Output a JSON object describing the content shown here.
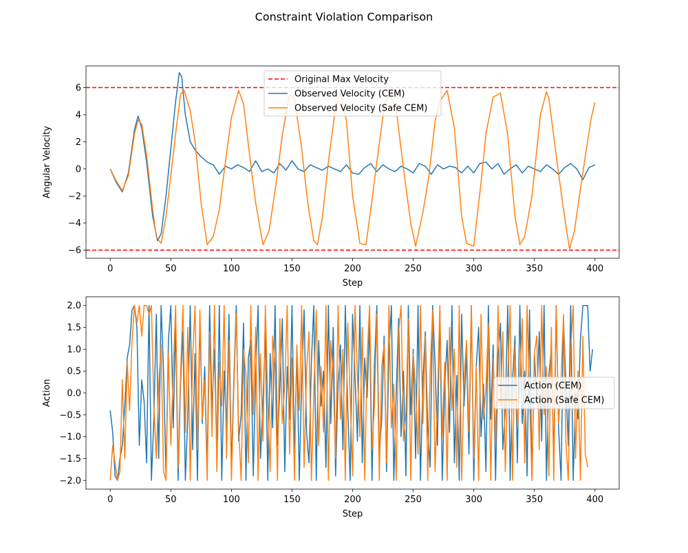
{
  "figure_title": "Constraint Violation Comparison",
  "chart_data": [
    {
      "type": "line",
      "title": "Constraint Violation Comparison",
      "xlabel": "Step",
      "ylabel": "Angular Velocity",
      "xlim": [
        -20,
        420
      ],
      "ylim": [
        -6.6,
        7.6
      ],
      "xticks": [
        0,
        50,
        100,
        150,
        200,
        250,
        300,
        350,
        400
      ],
      "xtick_labels": [
        "0",
        "50",
        "100",
        "150",
        "200",
        "250",
        "300",
        "350",
        "400"
      ],
      "yticks": [
        -6,
        -4,
        -2,
        0,
        2,
        4,
        6
      ],
      "ytick_labels": [
        "−6",
        "−4",
        "−2",
        "0",
        "2",
        "4",
        "6"
      ],
      "legend": {
        "placement": "upper-center",
        "entries": [
          {
            "label": "Original Max Velocity",
            "color": "#ff0000",
            "style": "dashed"
          },
          {
            "label": "Observed Velocity (CEM)",
            "color": "#1f77b4",
            "style": "solid"
          },
          {
            "label": "Observed Velocity (Safe CEM)",
            "color": "#ff7f0e",
            "style": "solid"
          }
        ]
      },
      "hlines": [
        {
          "name": "Original Max Velocity",
          "y": 6,
          "color": "#ff0000"
        },
        {
          "name": "Original Min Velocity",
          "y": -6,
          "color": "#ff0000"
        }
      ],
      "series": [
        {
          "name": "Observed Velocity (CEM)",
          "color": "#1f77b4",
          "x": [
            0,
            5,
            10,
            15,
            20,
            23,
            26,
            30,
            35,
            39,
            42,
            46,
            50,
            54,
            57,
            59,
            62,
            66,
            70,
            75,
            80,
            85,
            90,
            95,
            100,
            105,
            110,
            115,
            120,
            125,
            130,
            135,
            140,
            145,
            150,
            155,
            160,
            165,
            170,
            175,
            180,
            185,
            190,
            195,
            200,
            205,
            210,
            215,
            220,
            225,
            230,
            235,
            240,
            245,
            250,
            255,
            260,
            265,
            270,
            275,
            280,
            285,
            290,
            295,
            300,
            305,
            310,
            315,
            320,
            325,
            330,
            335,
            340,
            345,
            350,
            355,
            360,
            365,
            370,
            375,
            380,
            385,
            390,
            395,
            400
          ],
          "values": [
            0,
            -1.0,
            -1.7,
            -0.3,
            2.9,
            3.9,
            3.0,
            0.5,
            -3.5,
            -5.3,
            -4.8,
            -2.0,
            1.5,
            5.0,
            7.1,
            6.8,
            4.0,
            2.0,
            1.4,
            0.9,
            0.5,
            0.3,
            -0.4,
            0.2,
            0.0,
            0.3,
            0.1,
            -0.2,
            0.6,
            -0.2,
            0.0,
            -0.3,
            0.4,
            -0.1,
            0.6,
            0.0,
            -0.2,
            0.3,
            0.1,
            -0.1,
            0.2,
            0.0,
            -0.2,
            0.3,
            -0.3,
            -0.4,
            0.1,
            0.4,
            -0.2,
            0.3,
            0.0,
            -0.2,
            0.2,
            0.0,
            -0.3,
            0.4,
            0.2,
            -0.4,
            0.3,
            0.0,
            0.2,
            0.1,
            -0.3,
            0.2,
            -0.3,
            0.4,
            0.5,
            0.0,
            0.4,
            -0.4,
            0.0,
            0.3,
            -0.3,
            0.2,
            0.0,
            -0.2,
            0.3,
            0.0,
            -0.4,
            0.1,
            0.4,
            0.0,
            -0.8,
            0.1,
            0.3
          ]
        },
        {
          "name": "Observed Velocity (Safe CEM)",
          "color": "#ff7f0e",
          "x": [
            0,
            5,
            10,
            15,
            20,
            23,
            26,
            30,
            35,
            38,
            42,
            46,
            50,
            54,
            58,
            61,
            66,
            70,
            75,
            80,
            85,
            90,
            95,
            100,
            106,
            110,
            115,
            120,
            126,
            131,
            137,
            142,
            148,
            152,
            158,
            163,
            168,
            171,
            175,
            180,
            186,
            190,
            195,
            200,
            206,
            211,
            215,
            220,
            226,
            230,
            236,
            242,
            248,
            252,
            258,
            263,
            268,
            272,
            278,
            284,
            290,
            294,
            300,
            306,
            310,
            316,
            322,
            328,
            334,
            338,
            342,
            348,
            355,
            360,
            362,
            368,
            374,
            379,
            383,
            388,
            393,
            397,
            400
          ],
          "values": [
            0,
            -0.9,
            -1.6,
            -0.5,
            2.6,
            3.6,
            3.3,
            1.0,
            -3.0,
            -5.0,
            -5.5,
            -3.5,
            -0.5,
            2.6,
            5.5,
            5.8,
            4.3,
            2.0,
            -2.5,
            -5.6,
            -5.0,
            -3.0,
            0.5,
            3.8,
            5.8,
            4.8,
            1.0,
            -2.5,
            -5.6,
            -4.6,
            -1.0,
            2.5,
            5.5,
            5.2,
            1.5,
            -2.5,
            -5.3,
            -5.6,
            -3.6,
            0.5,
            4.6,
            5.7,
            3.5,
            -2.0,
            -5.5,
            -5.6,
            -3.0,
            0.5,
            4.5,
            5.7,
            4.4,
            0.0,
            -4.0,
            -5.7,
            -3.2,
            -0.5,
            3.5,
            5.0,
            5.8,
            3.0,
            -3.5,
            -5.5,
            -5.7,
            -1.0,
            2.6,
            5.3,
            5.6,
            2.5,
            -3.5,
            -5.6,
            -5.0,
            -2.0,
            4.0,
            5.7,
            5.2,
            1.0,
            -3.0,
            -5.9,
            -4.6,
            -1.5,
            1.5,
            3.8,
            4.9
          ]
        }
      ]
    },
    {
      "type": "line",
      "title": "",
      "xlabel": "Step",
      "ylabel": "Action",
      "xlim": [
        -20,
        420
      ],
      "ylim": [
        -2.2,
        2.2
      ],
      "xticks": [
        0,
        50,
        100,
        150,
        200,
        250,
        300,
        350,
        400
      ],
      "xtick_labels": [
        "0",
        "50",
        "100",
        "150",
        "200",
        "250",
        "300",
        "350",
        "400"
      ],
      "yticks": [
        -2.0,
        -1.5,
        -1.0,
        -0.5,
        0.0,
        0.5,
        1.0,
        1.5,
        2.0
      ],
      "ytick_labels": [
        "−2.0",
        "−1.5",
        "−1.0",
        "−0.5",
        "0.0",
        "0.5",
        "1.0",
        "1.5",
        "2.0"
      ],
      "legend": {
        "placement": "center-right",
        "entries": [
          {
            "label": "Action (CEM)",
            "color": "#1f77b4",
            "style": "solid"
          },
          {
            "label": "Action (Safe CEM)",
            "color": "#ff7f0e",
            "style": "solid"
          }
        ]
      },
      "series": [
        {
          "name": "Action (CEM)",
          "color": "#1f77b4",
          "x_start": 0,
          "x_step": 2,
          "values": [
            -0.4,
            -0.9,
            -1.9,
            -2.0,
            -1.5,
            -1.2,
            -0.3,
            0.8,
            1.1,
            1.9,
            2.0,
            1.5,
            -1.2,
            0.3,
            -0.2,
            -1.6,
            2.0,
            -2.0,
            -0.6,
            1.8,
            -1.5,
            2.0,
            0.5,
            -1.9,
            1.2,
            2.0,
            -0.8,
            1.6,
            -2.0,
            0.2,
            1.4,
            -2.0,
            -0.5,
            2.0,
            -1.3,
            0.9,
            -2.0,
            1.7,
            -0.7,
            0.6,
            -1.8,
            2.0,
            -0.4,
            1.0,
            -1.5,
            2.0,
            -2.0,
            0.5,
            -0.9,
            1.8,
            -1.7,
            0.3,
            2.0,
            -1.1,
            -0.5,
            1.6,
            -2.0,
            0.8,
            1.2,
            -1.9,
            0.4,
            2.0,
            -1.5,
            -0.2,
            1.4,
            -2.0,
            0.9,
            -0.8,
            2.0,
            -1.2,
            0.1,
            1.7,
            -1.8,
            0.6,
            -0.6,
            2.0,
            -1.4,
            1.0,
            -2.0,
            0.3,
            1.9,
            -0.9,
            -1.6,
            0.7,
            2.0,
            -2.0,
            1.2,
            -0.3,
            0.5,
            -1.7,
            2.0,
            -0.7,
            1.5,
            -1.9,
            0.2,
            1.1,
            -1.3,
            2.0,
            -0.4,
            -2.0,
            1.8,
            0.4,
            -1.1,
            2.0,
            -1.6,
            0.8,
            -0.1,
            1.6,
            -2.0,
            0.6,
            2.0,
            -1.4,
            -0.6,
            1.3,
            -1.8,
            0.9,
            2.0,
            -2.0,
            0.0,
            1.7,
            -1.0,
            0.5,
            -1.9,
            2.0,
            -0.5,
            1.0,
            -1.5,
            2.0,
            -2.0,
            0.3,
            1.4,
            -0.8,
            -1.7,
            2.0,
            0.7,
            -1.2,
            1.9,
            -2.0,
            0.1,
            1.2,
            -0.9,
            2.0,
            -1.6,
            0.4,
            -2.0,
            1.8,
            -0.3,
            0.9,
            -1.4,
            2.0,
            -2.0,
            0.6,
            1.5,
            -1.0,
            0.2,
            -1.8,
            2.0,
            -0.6,
            1.1,
            -2.0,
            0.8,
            1.6,
            -1.3,
            -0.4,
            2.0,
            -2.0,
            0.3,
            1.3,
            -1.6,
            2.0,
            -0.7,
            0.5,
            -1.9,
            1.9,
            -2.0,
            0.9,
            -0.2,
            1.4,
            -1.1,
            2.0,
            -2.0,
            0.4,
            1.0,
            -1.5,
            2.0,
            -0.8,
            -2.0,
            1.7,
            0.2,
            -1.2,
            2.0,
            -2.0,
            0.0,
            -0.6,
            1.2,
            2.0,
            2.0,
            2.0,
            0.5,
            1.0
          ]
        },
        {
          "name": "Action (Safe CEM)",
          "color": "#ff7f0e",
          "x_start": 0,
          "x_step": 2,
          "values": [
            -2.0,
            -1.2,
            -1.6,
            -2.0,
            -1.8,
            0.3,
            -1.5,
            0.7,
            -0.4,
            1.2,
            2.0,
            1.6,
            2.0,
            1.3,
            2.0,
            2.0,
            1.8,
            2.0,
            -0.3,
            -1.5,
            0.2,
            1.1,
            -1.8,
            -2.0,
            0.9,
            -1.2,
            0.5,
            2.0,
            -1.7,
            0.4,
            2.0,
            -0.9,
            1.5,
            -2.0,
            0.8,
            2.0,
            -1.3,
            1.9,
            -0.6,
            0.3,
            -2.0,
            1.4,
            -1.0,
            2.0,
            -1.8,
            0.7,
            -0.3,
            2.0,
            -1.5,
            1.2,
            -2.0,
            0.1,
            1.8,
            -0.8,
            -2.0,
            1.0,
            0.4,
            -1.6,
            2.0,
            -0.5,
            1.5,
            -2.0,
            0.9,
            -1.1,
            2.0,
            -0.2,
            -1.8,
            1.3,
            0.6,
            -2.0,
            1.7,
            -0.7,
            0.2,
            2.0,
            -1.4,
            0.8,
            -2.0,
            1.1,
            -0.4,
            2.0,
            -1.7,
            0.5,
            1.4,
            -2.0,
            0.0,
            1.9,
            -1.2,
            0.6,
            -0.9,
            2.0,
            -2.0,
            1.2,
            0.3,
            -1.5,
            2.0,
            -0.6,
            1.0,
            -2.0,
            1.6,
            -0.1,
            -1.9,
            2.0,
            0.4,
            -1.0,
            1.5,
            -2.0,
            0.8,
            2.0,
            -1.3,
            -0.3,
            1.8,
            -2.0,
            0.6,
            1.1,
            -1.6,
            2.0,
            -0.8,
            0.2,
            -2.0,
            1.4,
            2.0,
            -1.1,
            -0.5,
            1.7,
            -2.0,
            0.9,
            0.1,
            -1.4,
            2.0,
            -0.7,
            1.3,
            -2.0,
            0.5,
            1.9,
            -1.8,
            -0.2,
            2.0,
            -1.0,
            0.7,
            -2.0,
            1.5,
            -0.4,
            1.0,
            -1.7,
            2.0,
            -2.0,
            0.3,
            1.2,
            -0.9,
            2.0,
            -1.5,
            0.6,
            -2.0,
            1.8,
            -0.6,
            0.1,
            1.6,
            -2.0,
            0.8,
            -1.2,
            2.0,
            -0.3,
            1.4,
            -1.8,
            0.4,
            2.0,
            -2.0,
            1.1,
            -0.8,
            0.2,
            1.7,
            -1.6,
            2.0,
            -0.1,
            -2.0,
            0.9,
            1.3,
            -1.3,
            2.0,
            -0.5,
            0.6,
            -1.9,
            1.5,
            -2.0,
            2.0,
            -0.7,
            0.3,
            1.8,
            -1.1,
            -2.0,
            1.0,
            2.0,
            -1.5,
            0.5,
            -2.0,
            1.3,
            -1.4,
            -1.7
          ]
        }
      ]
    }
  ]
}
